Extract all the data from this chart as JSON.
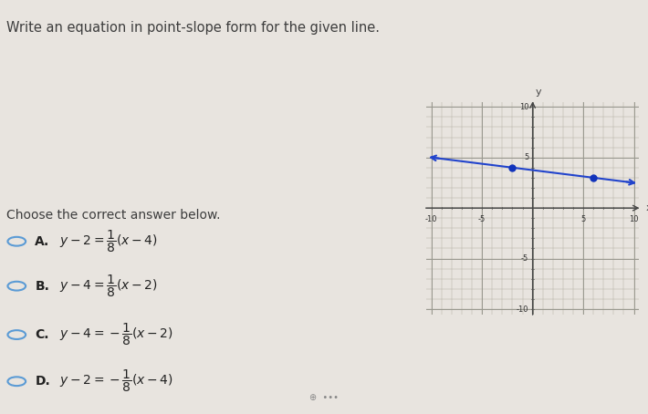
{
  "title_text": "Write an equation in point-slope form for the given line.",
  "question_color": "#3d3d3d",
  "background_color": "#e8e4df",
  "graph_bg_color": "#f0ede8",
  "grid_color": "#b5b0a5",
  "line_color": "#2244cc",
  "dot_color": "#1133bb",
  "slope": -0.125,
  "point1": [
    -2,
    4
  ],
  "point2": [
    6,
    3
  ],
  "choices_header": "Choose the correct answer below.",
  "top_bar_color": "#5b9bd5",
  "radio_color": "#5b9bd5",
  "divider_color": "#cccccc",
  "arrow_color": "#444444",
  "tick_label_color": "#333333"
}
